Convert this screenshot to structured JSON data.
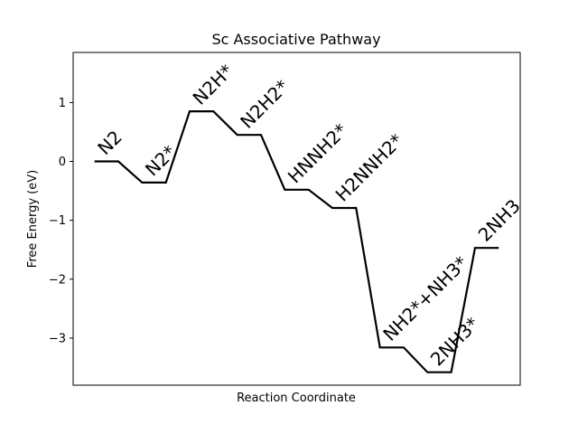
{
  "chart_data": {
    "type": "line",
    "title": "Sc Associative Pathway",
    "xlabel": "Reaction Coordinate",
    "ylabel": "Free Energy (eV)",
    "ylim": [
      -3.8,
      1.85
    ],
    "xlim": [
      -0.9,
      17.9
    ],
    "yticks": [
      1,
      0,
      -1,
      -2,
      -3
    ],
    "ytick_labels": [
      "1",
      "0",
      "−1",
      "−2",
      "−3"
    ],
    "grid": false,
    "line_color": "#000000",
    "steps": [
      {
        "label": "N2",
        "energy": 0.0
      },
      {
        "label": "N2*",
        "energy": -0.36
      },
      {
        "label": "N2H*",
        "energy": 0.85
      },
      {
        "label": "N2H2*",
        "energy": 0.45
      },
      {
        "label": "HNNH2*",
        "energy": -0.48
      },
      {
        "label": "H2NNH2*",
        "energy": -0.79
      },
      {
        "label": "NH2*+NH3*",
        "energy": -3.16
      },
      {
        "label": "2NH3*",
        "energy": -3.58
      },
      {
        "label": "2NH3",
        "energy": -1.47
      }
    ]
  }
}
